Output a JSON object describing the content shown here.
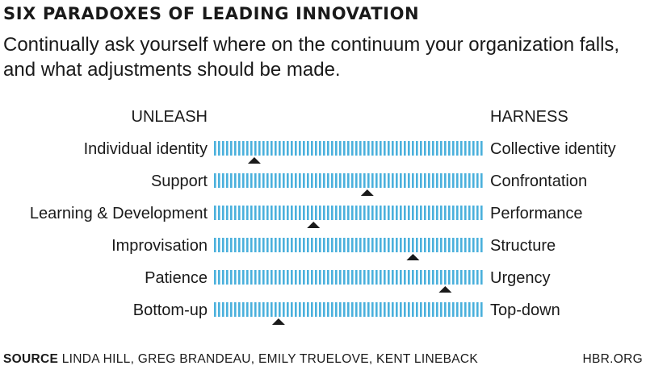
{
  "title": "SIX PARADOXES OF LEADING INNOVATION",
  "subtitle": "Continually ask yourself where on the continuum your organization falls, and what adjustments should be made.",
  "footer": {
    "source_label": "SOURCE",
    "source_text": "LINDA HILL, GREG BRANDEAU, EMILY TRUELOVE, KENT LINEBACK",
    "brand": "HBR.ORG"
  },
  "colors": {
    "tick": "#4ab0dc",
    "marker": "#1a1a1a",
    "text": "#1a1a1a"
  },
  "chart_data": {
    "type": "continuum",
    "left_header": "UNLEASH",
    "right_header": "HARNESS",
    "scale": [
      0,
      1
    ],
    "rows": [
      {
        "left": "Individual identity",
        "right": "Collective identity",
        "position": 0.15
      },
      {
        "left": "Support",
        "right": "Confrontation",
        "position": 0.57
      },
      {
        "left": "Learning & Development",
        "right": "Performance",
        "position": 0.37
      },
      {
        "left": "Improvisation",
        "right": "Structure",
        "position": 0.74
      },
      {
        "left": "Patience",
        "right": "Urgency",
        "position": 0.86
      },
      {
        "left": "Bottom-up",
        "right": "Top-down",
        "position": 0.24
      }
    ]
  }
}
